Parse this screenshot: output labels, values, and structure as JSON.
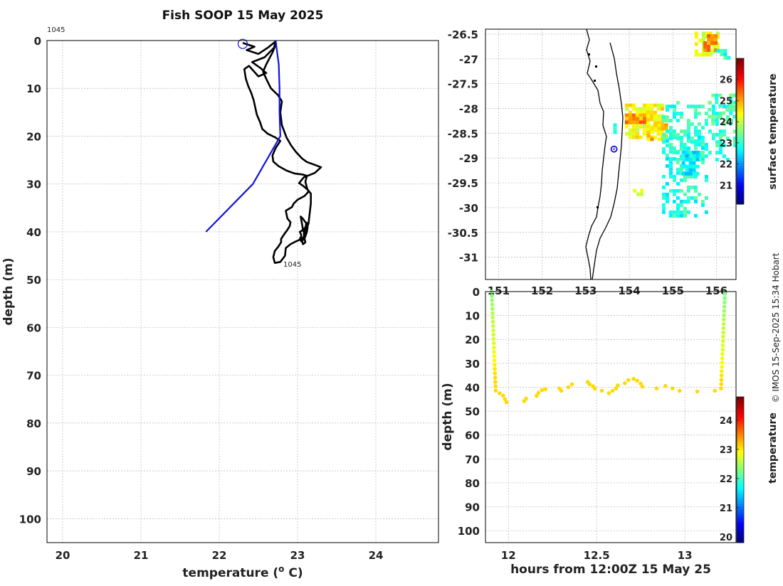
{
  "title": "Fish SOOP 15 May 2025",
  "credit": "© IMOS 15-Sep-2025 15:34 Hobart",
  "chart_data": [
    {
      "type": "line",
      "name": "profile",
      "xlabel": "temperature (o C)",
      "xlabel_main": "temperature (",
      "xlabel_sup": "o",
      "xlabel_end": " C)",
      "ylabel": "depth (m)",
      "xlim": [
        19.8,
        24.8
      ],
      "ylim": [
        105,
        0
      ],
      "xticks": [
        20,
        21,
        22,
        23,
        24
      ],
      "yticks": [
        0,
        10,
        20,
        30,
        40,
        50,
        60,
        70,
        80,
        90,
        100
      ],
      "start_label": "1045",
      "end_label": "1045",
      "start_marker": {
        "x": 22.3,
        "y": 0.7
      },
      "series": [
        {
          "name": "measured profile",
          "color": "#000000",
          "points": [
            [
              22.3,
              0.5
            ],
            [
              22.45,
              1.3
            ],
            [
              22.35,
              2.0
            ],
            [
              22.5,
              2.8
            ],
            [
              22.62,
              1.5
            ],
            [
              22.72,
              0.2
            ],
            [
              22.7,
              1.5
            ],
            [
              22.58,
              3.5
            ],
            [
              22.42,
              4.5
            ],
            [
              22.53,
              5.8
            ],
            [
              22.6,
              6.8
            ],
            [
              22.5,
              7.5
            ],
            [
              22.38,
              5.3
            ],
            [
              22.32,
              6.0
            ],
            [
              22.34,
              8.0
            ],
            [
              22.37,
              9.5
            ],
            [
              22.41,
              11.0
            ],
            [
              22.44,
              12.5
            ],
            [
              22.46,
              14.0
            ],
            [
              22.48,
              15.5
            ],
            [
              22.52,
              17.0
            ],
            [
              22.55,
              18.5
            ],
            [
              22.62,
              19.5
            ],
            [
              22.72,
              20.3
            ],
            [
              22.78,
              21.0
            ],
            [
              22.72,
              22.5
            ],
            [
              22.68,
              24.0
            ],
            [
              22.69,
              25.3
            ],
            [
              22.76,
              26.3
            ],
            [
              22.86,
              27.2
            ],
            [
              22.96,
              27.8
            ],
            [
              23.06,
              28.0
            ],
            [
              23.12,
              28.3
            ],
            [
              23.1,
              29.5
            ],
            [
              23.12,
              30.8
            ],
            [
              23.14,
              31.6
            ],
            [
              23.09,
              32.5
            ],
            [
              23.0,
              33.3
            ],
            [
              22.95,
              34.1
            ],
            [
              22.93,
              34.8
            ],
            [
              22.85,
              35.6
            ],
            [
              22.86,
              36.4
            ],
            [
              22.87,
              37.2
            ],
            [
              22.91,
              38.0
            ],
            [
              22.9,
              38.8
            ],
            [
              22.87,
              39.6
            ],
            [
              22.83,
              40.5
            ],
            [
              22.79,
              41.5
            ],
            [
              22.79,
              42.2
            ],
            [
              22.75,
              43.2
            ],
            [
              22.71,
              44.0
            ],
            [
              22.69,
              45.3
            ],
            [
              22.71,
              46.5
            ],
            [
              22.78,
              46.3
            ],
            [
              22.84,
              45.0
            ],
            [
              22.85,
              43.4
            ],
            [
              22.91,
              42.6
            ],
            [
              22.98,
              42.0
            ],
            [
              23.05,
              41.5
            ],
            [
              23.1,
              40.9
            ],
            [
              23.12,
              40.0
            ],
            [
              23.13,
              38.8
            ],
            [
              23.11,
              38.3
            ],
            [
              23.1,
              39.3
            ],
            [
              23.08,
              40.3
            ],
            [
              23.09,
              41.5
            ],
            [
              23.1,
              42.2
            ],
            [
              23.07,
              42.6
            ],
            [
              23.05,
              41.5
            ],
            [
              23.1,
              40.7
            ],
            [
              23.07,
              39.7
            ],
            [
              23.06,
              38.6
            ],
            [
              23.05,
              37.7
            ],
            [
              23.04,
              36.8
            ],
            [
              23.07,
              37.3
            ],
            [
              23.1,
              38.0
            ],
            [
              23.14,
              38.3
            ],
            [
              23.12,
              39.0
            ],
            [
              23.1,
              40.0
            ],
            [
              23.1,
              41.0
            ],
            [
              23.08,
              41.5
            ],
            [
              23.05,
              42.0
            ],
            [
              23.03,
              41.5
            ],
            [
              23.05,
              40.8
            ],
            [
              23.03,
              40.0
            ],
            [
              23.08,
              39.5
            ],
            [
              23.12,
              38.6
            ],
            [
              23.14,
              38.3
            ],
            [
              23.17,
              34.0
            ],
            [
              23.17,
              32.0
            ],
            [
              23.13,
              31.2
            ],
            [
              23.08,
              30.5
            ],
            [
              23.02,
              29.8
            ],
            [
              23.08,
              28.6
            ],
            [
              23.22,
              27.7
            ],
            [
              23.3,
              26.5
            ],
            [
              23.22,
              26.0
            ],
            [
              23.12,
              25.4
            ],
            [
              23.06,
              24.7
            ],
            [
              22.98,
              23.3
            ],
            [
              22.92,
              22.0
            ],
            [
              22.86,
              20.3
            ],
            [
              22.8,
              17.7
            ],
            [
              22.78,
              15.0
            ],
            [
              22.8,
              12.7
            ],
            [
              22.75,
              11.4
            ],
            [
              22.66,
              10.0
            ],
            [
              22.6,
              8.0
            ],
            [
              22.56,
              6.5
            ],
            [
              22.6,
              5.0
            ],
            [
              22.68,
              2.5
            ],
            [
              22.73,
              0.5
            ]
          ]
        },
        {
          "name": "reference profile",
          "color": "#1010dd",
          "points": [
            [
              22.72,
              0.0
            ],
            [
              22.76,
              5.0
            ],
            [
              22.77,
              10.0
            ],
            [
              22.77,
              15.0
            ],
            [
              22.78,
              20.0
            ],
            [
              22.43,
              30.0
            ],
            [
              21.83,
              40.0
            ]
          ]
        }
      ]
    },
    {
      "type": "heatmap",
      "name": "map",
      "colorbar_label": "surface temperature",
      "colorbar_ticks": [
        21,
        22,
        23,
        24,
        25,
        26
      ],
      "colorbar_range": [
        20.1,
        27.0
      ],
      "xlim": [
        150.7,
        156.45
      ],
      "ylim": [
        -31.45,
        -26.4
      ],
      "xticks": [
        151,
        152,
        153,
        154,
        155,
        156
      ],
      "yticks": [
        -26.5,
        -27,
        -27.5,
        -28,
        -28.5,
        -29,
        -29.5,
        -30,
        -30.5,
        -31
      ],
      "ytick_labels": [
        "-26.5",
        "-27",
        "-27.5",
        "-28",
        "-28.5",
        "-29",
        "-29.5",
        "-30",
        "-30.5",
        "-31"
      ],
      "station": {
        "lon": 153.65,
        "lat": -28.82
      },
      "patches": [
        {
          "lon": [
            155.5,
            156.0
          ],
          "lat": [
            -26.95,
            -26.45
          ],
          "t": 24.2,
          "density": 0.6
        },
        {
          "lon": [
            155.7,
            155.95
          ],
          "lat": [
            -26.8,
            -26.5
          ],
          "t": 25.3,
          "density": 0.7
        },
        {
          "lon": [
            156.0,
            156.3
          ],
          "lat": [
            -27.0,
            -26.8
          ],
          "t": 23.0,
          "density": 0.55
        },
        {
          "lon": [
            153.9,
            154.75
          ],
          "lat": [
            -28.55,
            -27.9
          ],
          "t": 24.4,
          "density": 0.75
        },
        {
          "lon": [
            154.4,
            154.85
          ],
          "lat": [
            -28.6,
            -28.3
          ],
          "t": 24.8,
          "density": 0.7
        },
        {
          "lon": [
            153.9,
            154.35
          ],
          "lat": [
            -28.3,
            -28.1
          ],
          "t": 25.2,
          "density": 0.65
        },
        {
          "lon": [
            154.75,
            156.45
          ],
          "lat": [
            -29.0,
            -27.85
          ],
          "t": 23.0,
          "density": 0.35
        },
        {
          "lon": [
            154.75,
            155.75
          ],
          "lat": [
            -30.15,
            -28.55
          ],
          "t": 22.9,
          "density": 0.45
        },
        {
          "lon": [
            155.2,
            155.6
          ],
          "lat": [
            -29.35,
            -28.85
          ],
          "t": 22.6,
          "density": 0.8
        },
        {
          "lon": [
            155.8,
            156.45
          ],
          "lat": [
            -28.3,
            -27.7
          ],
          "t": 23.2,
          "density": 0.4
        },
        {
          "lon": [
            153.55,
            153.7
          ],
          "lat": [
            -28.5,
            -28.3
          ],
          "t": 23.1,
          "density": 0.5
        },
        {
          "lon": [
            154.0,
            154.3
          ],
          "lat": [
            -29.7,
            -29.55
          ],
          "t": 24.0,
          "density": 0.5
        }
      ]
    },
    {
      "type": "scatter",
      "name": "section",
      "xlabel": "hours from 12:00Z 15 May 25",
      "ylabel": "depth (m)",
      "colorbar_label": "temperature",
      "colorbar_ticks": [
        20,
        21,
        22,
        23,
        24
      ],
      "colorbar_range": [
        19.8,
        24.8
      ],
      "xlim": [
        11.87,
        13.29
      ],
      "ylim": [
        105,
        0
      ],
      "xticks": [
        12,
        12.5,
        13
      ],
      "xtick_labels": [
        "12",
        "12.5",
        "13"
      ],
      "yticks": [
        0,
        10,
        20,
        30,
        40,
        50,
        60,
        70,
        80,
        90,
        100
      ],
      "points": [
        [
          11.905,
          0.0,
          22.3
        ],
        [
          11.906,
          1.8,
          22.35
        ],
        [
          11.907,
          3.6,
          22.4
        ],
        [
          11.908,
          5.4,
          22.45
        ],
        [
          11.909,
          7.2,
          22.5
        ],
        [
          11.91,
          9.0,
          22.55
        ],
        [
          11.911,
          10.8,
          22.6
        ],
        [
          11.912,
          12.6,
          22.62
        ],
        [
          11.913,
          14.4,
          22.65
        ],
        [
          11.914,
          16.2,
          22.68
        ],
        [
          11.915,
          18.0,
          22.7
        ],
        [
          11.916,
          19.8,
          22.75
        ],
        [
          11.917,
          21.6,
          22.78
        ],
        [
          11.918,
          23.4,
          22.8
        ],
        [
          11.919,
          25.2,
          22.85
        ],
        [
          11.92,
          27.0,
          22.9
        ],
        [
          11.921,
          28.8,
          22.95
        ],
        [
          11.922,
          30.6,
          23.0
        ],
        [
          11.923,
          32.4,
          23.05
        ],
        [
          11.924,
          34.2,
          23.08
        ],
        [
          11.925,
          36.0,
          23.1
        ],
        [
          11.926,
          37.8,
          23.1
        ],
        [
          11.927,
          39.6,
          23.1
        ],
        [
          11.928,
          41.4,
          23.1
        ],
        [
          11.95,
          42.5,
          23.1
        ],
        [
          11.97,
          43.5,
          23.1
        ],
        [
          11.98,
          45.0,
          23.1
        ],
        [
          11.99,
          46.3,
          23.1
        ],
        [
          12.09,
          45.8,
          23.1
        ],
        [
          12.1,
          44.8,
          23.1
        ],
        [
          12.16,
          43.6,
          23.1
        ],
        [
          12.17,
          42.3,
          23.1
        ],
        [
          12.19,
          41.2,
          23.1
        ],
        [
          12.21,
          40.8,
          23.1
        ],
        [
          12.29,
          40.5,
          23.1
        ],
        [
          12.3,
          41.5,
          23.1
        ],
        [
          12.34,
          40.0,
          23.1
        ],
        [
          12.36,
          38.8,
          23.1
        ],
        [
          12.45,
          37.8,
          23.1
        ],
        [
          12.46,
          38.8,
          23.1
        ],
        [
          12.48,
          39.6,
          23.1
        ],
        [
          12.49,
          40.6,
          23.1
        ],
        [
          12.53,
          41.5,
          23.1
        ],
        [
          12.57,
          42.5,
          23.1
        ],
        [
          12.59,
          41.5,
          23.1
        ],
        [
          12.61,
          40.5,
          23.1
        ],
        [
          12.62,
          39.2,
          23.1
        ],
        [
          12.66,
          38.3,
          23.1
        ],
        [
          12.68,
          37.0,
          23.1
        ],
        [
          12.71,
          36.5,
          23.1
        ],
        [
          12.73,
          37.3,
          23.1
        ],
        [
          12.75,
          38.5,
          23.1
        ],
        [
          12.76,
          39.8,
          23.1
        ],
        [
          12.84,
          40.5,
          23.1
        ],
        [
          12.89,
          39.5,
          23.1
        ],
        [
          12.93,
          40.5,
          23.1
        ],
        [
          12.97,
          41.5,
          23.1
        ],
        [
          13.07,
          41.8,
          23.1
        ],
        [
          13.17,
          41.5,
          23.1
        ],
        [
          13.205,
          40.5,
          23.1
        ],
        [
          13.206,
          38.7,
          23.1
        ],
        [
          13.207,
          36.9,
          23.1
        ],
        [
          13.208,
          35.1,
          23.05
        ],
        [
          13.209,
          33.3,
          23.0
        ],
        [
          13.21,
          31.5,
          22.95
        ],
        [
          13.211,
          29.7,
          22.9
        ],
        [
          13.212,
          27.9,
          22.85
        ],
        [
          13.213,
          26.1,
          22.8
        ],
        [
          13.214,
          24.3,
          22.78
        ],
        [
          13.215,
          22.5,
          22.75
        ],
        [
          13.216,
          20.7,
          22.7
        ],
        [
          13.217,
          18.9,
          22.68
        ],
        [
          13.218,
          17.1,
          22.65
        ],
        [
          13.219,
          15.3,
          22.62
        ],
        [
          13.22,
          13.5,
          22.6
        ],
        [
          13.221,
          11.7,
          22.55
        ],
        [
          13.222,
          9.9,
          22.5
        ],
        [
          13.223,
          8.1,
          22.45
        ],
        [
          13.224,
          6.3,
          22.4
        ],
        [
          13.225,
          4.5,
          22.35
        ],
        [
          13.226,
          2.7,
          22.3
        ],
        [
          13.227,
          0.9,
          22.3
        ]
      ]
    }
  ]
}
